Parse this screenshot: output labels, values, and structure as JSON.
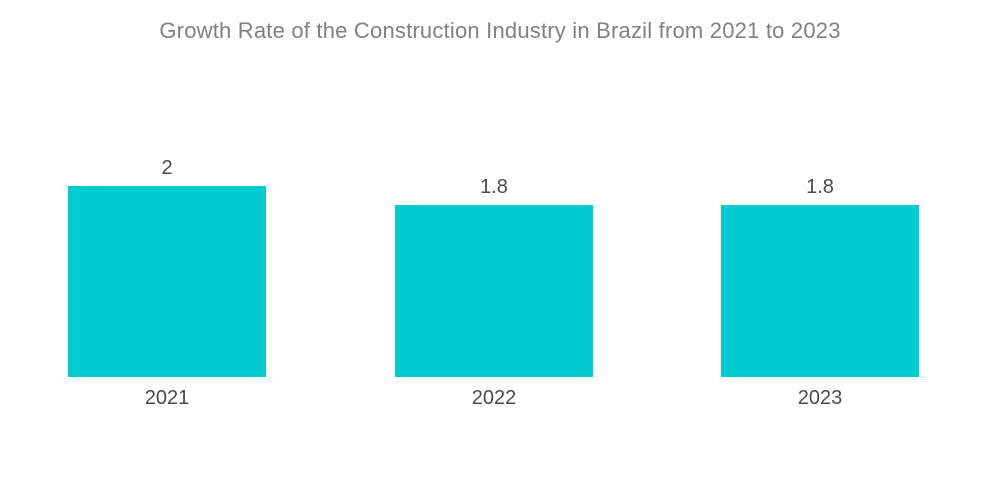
{
  "chart_data": {
    "type": "bar",
    "title": "Growth Rate of the Construction Industry in Brazil from 2021 to 2023",
    "categories": [
      "2021",
      "2022",
      "2023"
    ],
    "values": [
      2,
      1.8,
      1.8
    ],
    "value_labels": [
      "2",
      "1.8",
      "1.8"
    ],
    "xlabel": "",
    "ylabel": "",
    "ylim": [
      0,
      2
    ],
    "grid": false,
    "legend": false,
    "axis_lines": false,
    "bar_color": "#00cbd1",
    "label_color": "#4a4b4d",
    "title_color": "#7f8184",
    "background_color": "#ffffff"
  }
}
